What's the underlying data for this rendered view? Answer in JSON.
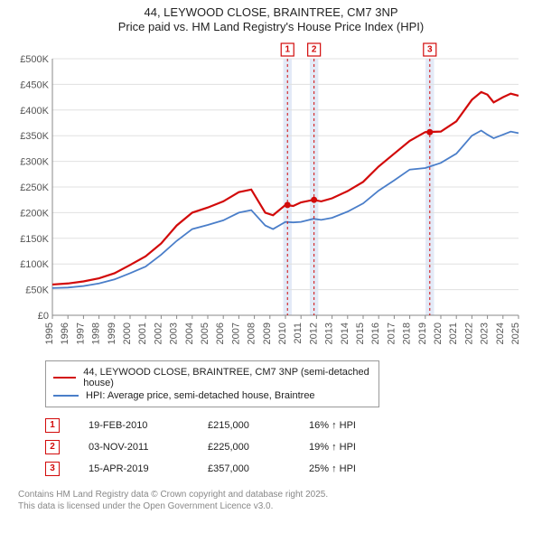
{
  "title_line1": "44, LEYWOOD CLOSE, BRAINTREE, CM7 3NP",
  "title_line2": "Price paid vs. HM Land Registry's House Price Index (HPI)",
  "chart": {
    "type": "line",
    "background_color": "#ffffff",
    "grid_color": "#e0e0e0",
    "axis_color": "#888888",
    "label_color": "#555555",
    "label_fontsize": 11,
    "x_years": [
      1995,
      1996,
      1997,
      1998,
      1999,
      2000,
      2001,
      2002,
      2003,
      2004,
      2005,
      2006,
      2007,
      2008,
      2009,
      2010,
      2011,
      2012,
      2013,
      2014,
      2015,
      2016,
      2017,
      2018,
      2019,
      2020,
      2021,
      2022,
      2023,
      2024,
      2025
    ],
    "xlim": [
      1995,
      2025
    ],
    "ylim": [
      0,
      500000
    ],
    "ytick_step": 50000,
    "ytick_labels": [
      "£0",
      "£50K",
      "£100K",
      "£150K",
      "£200K",
      "£250K",
      "£300K",
      "£350K",
      "£400K",
      "£450K",
      "£500K"
    ],
    "series_red": {
      "color": "#d20a0a",
      "line_width": 2.2,
      "data": [
        [
          1995,
          60000
        ],
        [
          1996,
          62000
        ],
        [
          1997,
          66000
        ],
        [
          1998,
          72000
        ],
        [
          1999,
          82000
        ],
        [
          2000,
          98000
        ],
        [
          2001,
          115000
        ],
        [
          2002,
          140000
        ],
        [
          2003,
          175000
        ],
        [
          2004,
          200000
        ],
        [
          2005,
          210000
        ],
        [
          2006,
          222000
        ],
        [
          2007,
          240000
        ],
        [
          2007.8,
          245000
        ],
        [
          2008.7,
          200000
        ],
        [
          2009.2,
          195000
        ],
        [
          2010,
          215000
        ],
        [
          2010.5,
          213000
        ],
        [
          2011,
          220000
        ],
        [
          2011.8,
          225000
        ],
        [
          2012.3,
          222000
        ],
        [
          2013,
          228000
        ],
        [
          2014,
          242000
        ],
        [
          2015,
          260000
        ],
        [
          2016,
          290000
        ],
        [
          2017,
          315000
        ],
        [
          2018,
          340000
        ],
        [
          2019,
          357000
        ],
        [
          2020,
          358000
        ],
        [
          2021,
          378000
        ],
        [
          2022,
          420000
        ],
        [
          2022.6,
          435000
        ],
        [
          2023,
          430000
        ],
        [
          2023.4,
          415000
        ],
        [
          2024,
          425000
        ],
        [
          2024.5,
          432000
        ],
        [
          2025,
          428000
        ]
      ]
    },
    "series_blue": {
      "color": "#4a7ec9",
      "line_width": 1.8,
      "data": [
        [
          1995,
          53000
        ],
        [
          1996,
          54000
        ],
        [
          1997,
          57000
        ],
        [
          1998,
          62000
        ],
        [
          1999,
          70000
        ],
        [
          2000,
          82000
        ],
        [
          2001,
          95000
        ],
        [
          2002,
          118000
        ],
        [
          2003,
          145000
        ],
        [
          2004,
          168000
        ],
        [
          2005,
          176000
        ],
        [
          2006,
          185000
        ],
        [
          2007,
          200000
        ],
        [
          2007.8,
          205000
        ],
        [
          2008.7,
          175000
        ],
        [
          2009.2,
          168000
        ],
        [
          2010,
          182000
        ],
        [
          2010.5,
          181000
        ],
        [
          2011,
          182000
        ],
        [
          2011.8,
          188000
        ],
        [
          2012.3,
          186000
        ],
        [
          2013,
          190000
        ],
        [
          2014,
          202000
        ],
        [
          2015,
          218000
        ],
        [
          2016,
          243000
        ],
        [
          2017,
          263000
        ],
        [
          2018,
          284000
        ],
        [
          2019,
          287000
        ],
        [
          2020,
          297000
        ],
        [
          2021,
          315000
        ],
        [
          2022,
          350000
        ],
        [
          2022.6,
          360000
        ],
        [
          2023,
          352000
        ],
        [
          2023.4,
          345000
        ],
        [
          2024,
          352000
        ],
        [
          2024.5,
          358000
        ],
        [
          2025,
          355000
        ]
      ]
    },
    "markers": [
      {
        "n": "1",
        "x": 2010.13,
        "price": 215000,
        "band_width_years": 0.55
      },
      {
        "n": "2",
        "x": 2011.84,
        "price": 225000,
        "band_width_years": 0.55
      },
      {
        "n": "3",
        "x": 2019.29,
        "price": 357000,
        "band_width_years": 0.55
      }
    ],
    "marker_box": {
      "fill": "#ffffff",
      "stroke": "#d20a0a",
      "size": 14,
      "fontsize": 10
    },
    "marker_band_color": "#ccd9f0"
  },
  "legend": {
    "items": [
      {
        "color": "#d20a0a",
        "label": "44, LEYWOOD CLOSE, BRAINTREE, CM7 3NP (semi-detached house)"
      },
      {
        "color": "#4a7ec9",
        "label": "HPI: Average price, semi-detached house, Braintree"
      }
    ]
  },
  "transactions": [
    {
      "n": "1",
      "date": "19-FEB-2010",
      "price": "£215,000",
      "delta": "16% ↑ HPI"
    },
    {
      "n": "2",
      "date": "03-NOV-2011",
      "price": "£225,000",
      "delta": "19% ↑ HPI"
    },
    {
      "n": "3",
      "date": "15-APR-2019",
      "price": "£357,000",
      "delta": "25% ↑ HPI"
    }
  ],
  "footnote_line1": "Contains HM Land Registry data © Crown copyright and database right 2025.",
  "footnote_line2": "This data is licensed under the Open Government Licence v3.0."
}
